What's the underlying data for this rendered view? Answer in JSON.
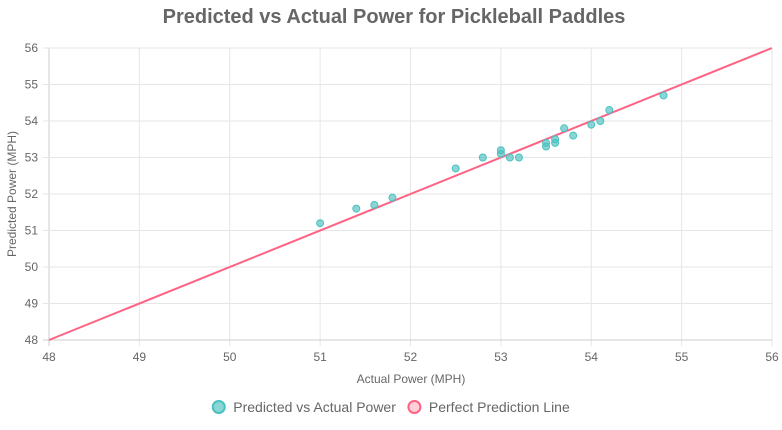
{
  "chart_data": {
    "type": "scatter",
    "title": "Predicted vs Actual Power for Pickleball Paddles",
    "xlabel": "Actual Power (MPH)",
    "ylabel": "Predicted Power (MPH)",
    "xlim": [
      48,
      56
    ],
    "ylim": [
      48,
      56
    ],
    "x_ticks": [
      "48",
      "49",
      "50",
      "51",
      "52",
      "53",
      "54",
      "55",
      "56"
    ],
    "y_ticks": [
      "48",
      "49",
      "50",
      "51",
      "52",
      "53",
      "54",
      "55",
      "56"
    ],
    "grid": true,
    "legend_position": "bottom",
    "series": [
      {
        "name": "Predicted vs Actual Power",
        "type": "scatter",
        "color": "#4bc0c0",
        "points": [
          {
            "x": 51.0,
            "y": 51.2
          },
          {
            "x": 51.4,
            "y": 51.6
          },
          {
            "x": 51.6,
            "y": 51.7
          },
          {
            "x": 51.8,
            "y": 51.9
          },
          {
            "x": 52.5,
            "y": 52.7
          },
          {
            "x": 52.8,
            "y": 53.0
          },
          {
            "x": 53.0,
            "y": 53.1
          },
          {
            "x": 53.0,
            "y": 53.2
          },
          {
            "x": 53.1,
            "y": 53.0
          },
          {
            "x": 53.2,
            "y": 53.0
          },
          {
            "x": 53.5,
            "y": 53.3
          },
          {
            "x": 53.5,
            "y": 53.4
          },
          {
            "x": 53.6,
            "y": 53.4
          },
          {
            "x": 53.6,
            "y": 53.5
          },
          {
            "x": 53.7,
            "y": 53.8
          },
          {
            "x": 53.8,
            "y": 53.6
          },
          {
            "x": 54.0,
            "y": 53.9
          },
          {
            "x": 54.1,
            "y": 54.0
          },
          {
            "x": 54.2,
            "y": 54.3
          },
          {
            "x": 54.8,
            "y": 54.7
          }
        ]
      },
      {
        "name": "Perfect Prediction Line",
        "type": "line",
        "color": "#ff6384",
        "points": [
          {
            "x": 48,
            "y": 48
          },
          {
            "x": 56,
            "y": 56
          }
        ]
      }
    ]
  }
}
